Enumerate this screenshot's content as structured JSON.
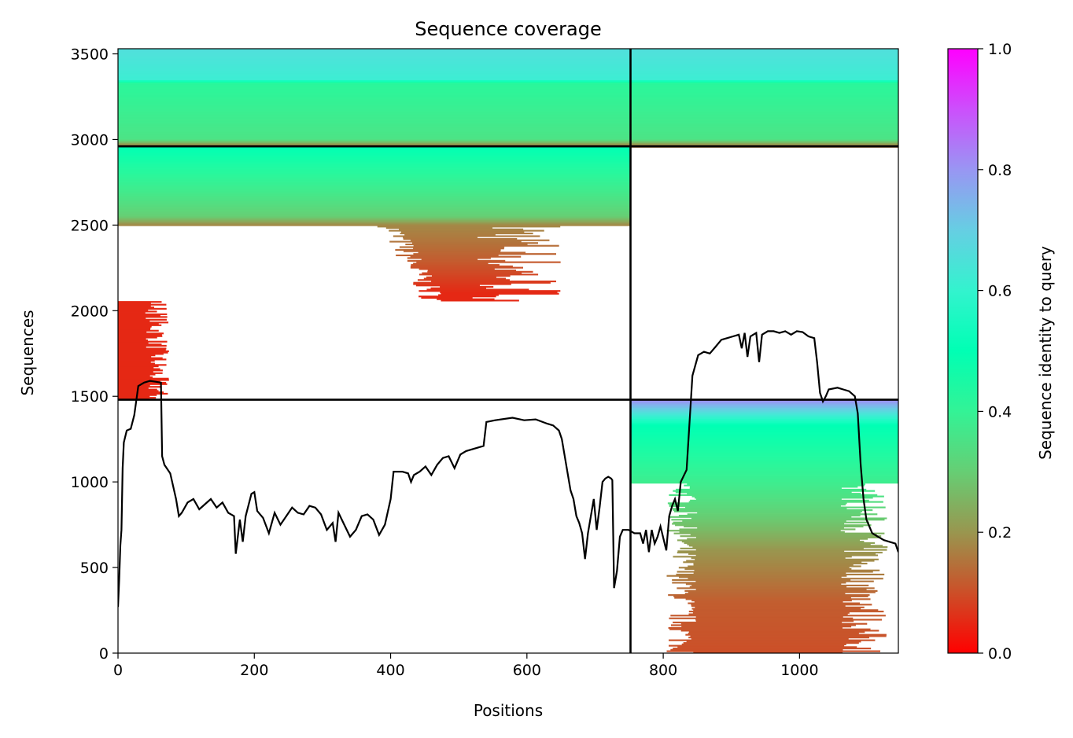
{
  "chart_data": {
    "type": "heatmap",
    "title": "Sequence coverage",
    "xlabel": "Positions",
    "ylabel": "Sequences",
    "xlim": [
      0,
      1145
    ],
    "ylim": [
      0,
      3530
    ],
    "xticks": [
      0,
      200,
      400,
      600,
      800,
      1000
    ],
    "yticks": [
      0,
      500,
      1000,
      1500,
      2000,
      2500,
      3000,
      3500
    ],
    "colorbar": {
      "label": "Sequence identity to query",
      "ticks": [
        0.0,
        0.2,
        0.4,
        0.6,
        0.8,
        1.0
      ],
      "tick_labels": [
        "0.0",
        "0.2",
        "0.4",
        "0.6",
        "0.8",
        "1.0"
      ],
      "colormap": "rainbow_r",
      "range": [
        0,
        1
      ]
    },
    "chain_boundaries": {
      "x": [
        752
      ],
      "y": [
        1480,
        2960
      ]
    },
    "blocks": [
      {
        "name": "chain A / chain A paired rows",
        "x_range": [
          0,
          752
        ],
        "y_range": [
          2960,
          3530
        ],
        "identity_top": 0.65,
        "identity_bottom": 0.15,
        "color_stops": [
          [
            3530,
            0.66
          ],
          [
            3350,
            0.62
          ],
          [
            3330,
            0.42
          ],
          [
            3000,
            0.35
          ],
          [
            2960,
            0.15
          ]
        ]
      },
      {
        "name": "chain B / chain A paired rows",
        "x_range": [
          752,
          1145
        ],
        "y_range": [
          2960,
          3530
        ],
        "identity_top": 0.65,
        "identity_bottom": 0.15,
        "color_stops": [
          [
            3530,
            0.66
          ],
          [
            3350,
            0.62
          ],
          [
            3330,
            0.42
          ],
          [
            3000,
            0.35
          ],
          [
            2960,
            0.15
          ]
        ]
      },
      {
        "name": "chain A unpaired rows",
        "x_range": [
          0,
          752
        ],
        "y_range": [
          1480,
          2960
        ],
        "identity_top": 0.5,
        "identity_bottom": 0.05,
        "color_stops": [
          [
            2960,
            0.5
          ],
          [
            2800,
            0.42
          ],
          [
            2550,
            0.3
          ],
          [
            2500,
            0.18
          ],
          [
            2300,
            0.12
          ],
          [
            2100,
            0.05
          ],
          [
            1480,
            0.05
          ]
        ]
      },
      {
        "name": "chain B unpaired rows",
        "x_range": [
          752,
          1145
        ],
        "y_range": [
          0,
          1480
        ],
        "identity_top": 0.8,
        "identity_bottom": 0.1,
        "color_stops": [
          [
            1480,
            0.82
          ],
          [
            1330,
            0.5
          ],
          [
            1000,
            0.38
          ],
          [
            800,
            0.3
          ],
          [
            600,
            0.2
          ],
          [
            300,
            0.12
          ],
          [
            0,
            0.1
          ]
        ]
      }
    ],
    "coverage_line_points": [
      [
        0,
        270
      ],
      [
        2,
        430
      ],
      [
        4,
        630
      ],
      [
        6,
        720
      ],
      [
        8,
        1080
      ],
      [
        10,
        1230
      ],
      [
        15,
        1300
      ],
      [
        22,
        1310
      ],
      [
        28,
        1390
      ],
      [
        35,
        1560
      ],
      [
        45,
        1580
      ],
      [
        55,
        1590
      ],
      [
        65,
        1585
      ],
      [
        74,
        1580
      ],
      [
        76,
        1150
      ],
      [
        80,
        1100
      ],
      [
        90,
        1050
      ],
      [
        100,
        900
      ],
      [
        105,
        800
      ],
      [
        110,
        820
      ],
      [
        120,
        880
      ],
      [
        130,
        900
      ],
      [
        140,
        840
      ],
      [
        150,
        870
      ],
      [
        160,
        900
      ],
      [
        170,
        850
      ],
      [
        180,
        880
      ],
      [
        190,
        820
      ],
      [
        200,
        800
      ],
      [
        203,
        580
      ],
      [
        210,
        780
      ],
      [
        215,
        650
      ],
      [
        220,
        800
      ],
      [
        230,
        930
      ],
      [
        235,
        940
      ],
      [
        240,
        830
      ],
      [
        250,
        790
      ],
      [
        260,
        700
      ],
      [
        270,
        820
      ],
      [
        280,
        750
      ],
      [
        290,
        800
      ],
      [
        300,
        850
      ],
      [
        310,
        820
      ],
      [
        320,
        810
      ],
      [
        330,
        860
      ],
      [
        340,
        850
      ],
      [
        350,
        810
      ],
      [
        360,
        720
      ],
      [
        370,
        760
      ],
      [
        375,
        650
      ],
      [
        380,
        820
      ],
      [
        390,
        750
      ],
      [
        400,
        680
      ],
      [
        410,
        720
      ],
      [
        420,
        800
      ],
      [
        430,
        810
      ],
      [
        440,
        780
      ],
      [
        450,
        690
      ],
      [
        460,
        750
      ],
      [
        470,
        900
      ],
      [
        475,
        1060
      ],
      [
        490,
        1060
      ],
      [
        500,
        1050
      ],
      [
        505,
        1000
      ],
      [
        510,
        1040
      ],
      [
        520,
        1060
      ],
      [
        530,
        1090
      ],
      [
        540,
        1040
      ],
      [
        550,
        1100
      ],
      [
        560,
        1140
      ],
      [
        570,
        1150
      ],
      [
        580,
        1080
      ],
      [
        590,
        1160
      ],
      [
        600,
        1180
      ],
      [
        620,
        1200
      ],
      [
        630,
        1210
      ],
      [
        635,
        1350
      ],
      [
        650,
        1360
      ],
      [
        680,
        1375
      ],
      [
        700,
        1360
      ],
      [
        720,
        1365
      ],
      [
        740,
        1340
      ],
      [
        750,
        1330
      ],
      [
        760,
        1300
      ],
      [
        765,
        1250
      ],
      [
        770,
        1150
      ],
      [
        775,
        1050
      ],
      [
        780,
        950
      ],
      [
        785,
        900
      ],
      [
        790,
        800
      ],
      [
        795,
        760
      ],
      [
        800,
        700
      ],
      [
        805,
        550
      ],
      [
        810,
        700
      ],
      [
        815,
        800
      ],
      [
        820,
        900
      ],
      [
        825,
        720
      ],
      [
        830,
        850
      ],
      [
        835,
        1000
      ],
      [
        840,
        1020
      ],
      [
        845,
        1030
      ],
      [
        850,
        1020
      ],
      [
        852,
        1010
      ],
      [
        855,
        380
      ],
      [
        860,
        480
      ],
      [
        865,
        680
      ],
      [
        870,
        720
      ],
      [
        880,
        720
      ],
      [
        890,
        700
      ],
      [
        900,
        700
      ],
      [
        905,
        640
      ],
      [
        910,
        720
      ],
      [
        915,
        590
      ],
      [
        920,
        720
      ],
      [
        925,
        640
      ],
      [
        930,
        680
      ],
      [
        935,
        740
      ],
      [
        945,
        600
      ],
      [
        950,
        800
      ],
      [
        955,
        860
      ],
      [
        960,
        900
      ],
      [
        965,
        830
      ],
      [
        970,
        1000
      ],
      [
        980,
        1070
      ],
      [
        990,
        1620
      ],
      [
        1000,
        1740
      ],
      [
        1010,
        1760
      ],
      [
        1020,
        1750
      ],
      [
        1030,
        1790
      ],
      [
        1040,
        1830
      ],
      [
        1050,
        1840
      ],
      [
        1060,
        1850
      ],
      [
        1070,
        1860
      ],
      [
        1075,
        1780
      ],
      [
        1080,
        1870
      ],
      [
        1085,
        1730
      ],
      [
        1090,
        1850
      ],
      [
        1100,
        1870
      ],
      [
        1105,
        1700
      ],
      [
        1110,
        1860
      ],
      [
        1120,
        1880
      ],
      [
        1130,
        1880
      ],
      [
        1140,
        1870
      ],
      [
        1150,
        1880
      ],
      [
        1160,
        1860
      ],
      [
        1170,
        1880
      ],
      [
        1180,
        1875
      ],
      [
        1190,
        1850
      ],
      [
        1200,
        1840
      ],
      [
        1205,
        1700
      ],
      [
        1210,
        1520
      ],
      [
        1215,
        1470
      ],
      [
        1220,
        1500
      ],
      [
        1225,
        1540
      ],
      [
        1240,
        1550
      ],
      [
        1250,
        1540
      ],
      [
        1260,
        1530
      ],
      [
        1270,
        1500
      ],
      [
        1275,
        1400
      ],
      [
        1280,
        1100
      ],
      [
        1285,
        900
      ],
      [
        1290,
        780
      ],
      [
        1300,
        700
      ],
      [
        1310,
        680
      ],
      [
        1320,
        660
      ],
      [
        1330,
        650
      ],
      [
        1340,
        640
      ],
      [
        1345,
        590
      ]
    ]
  }
}
